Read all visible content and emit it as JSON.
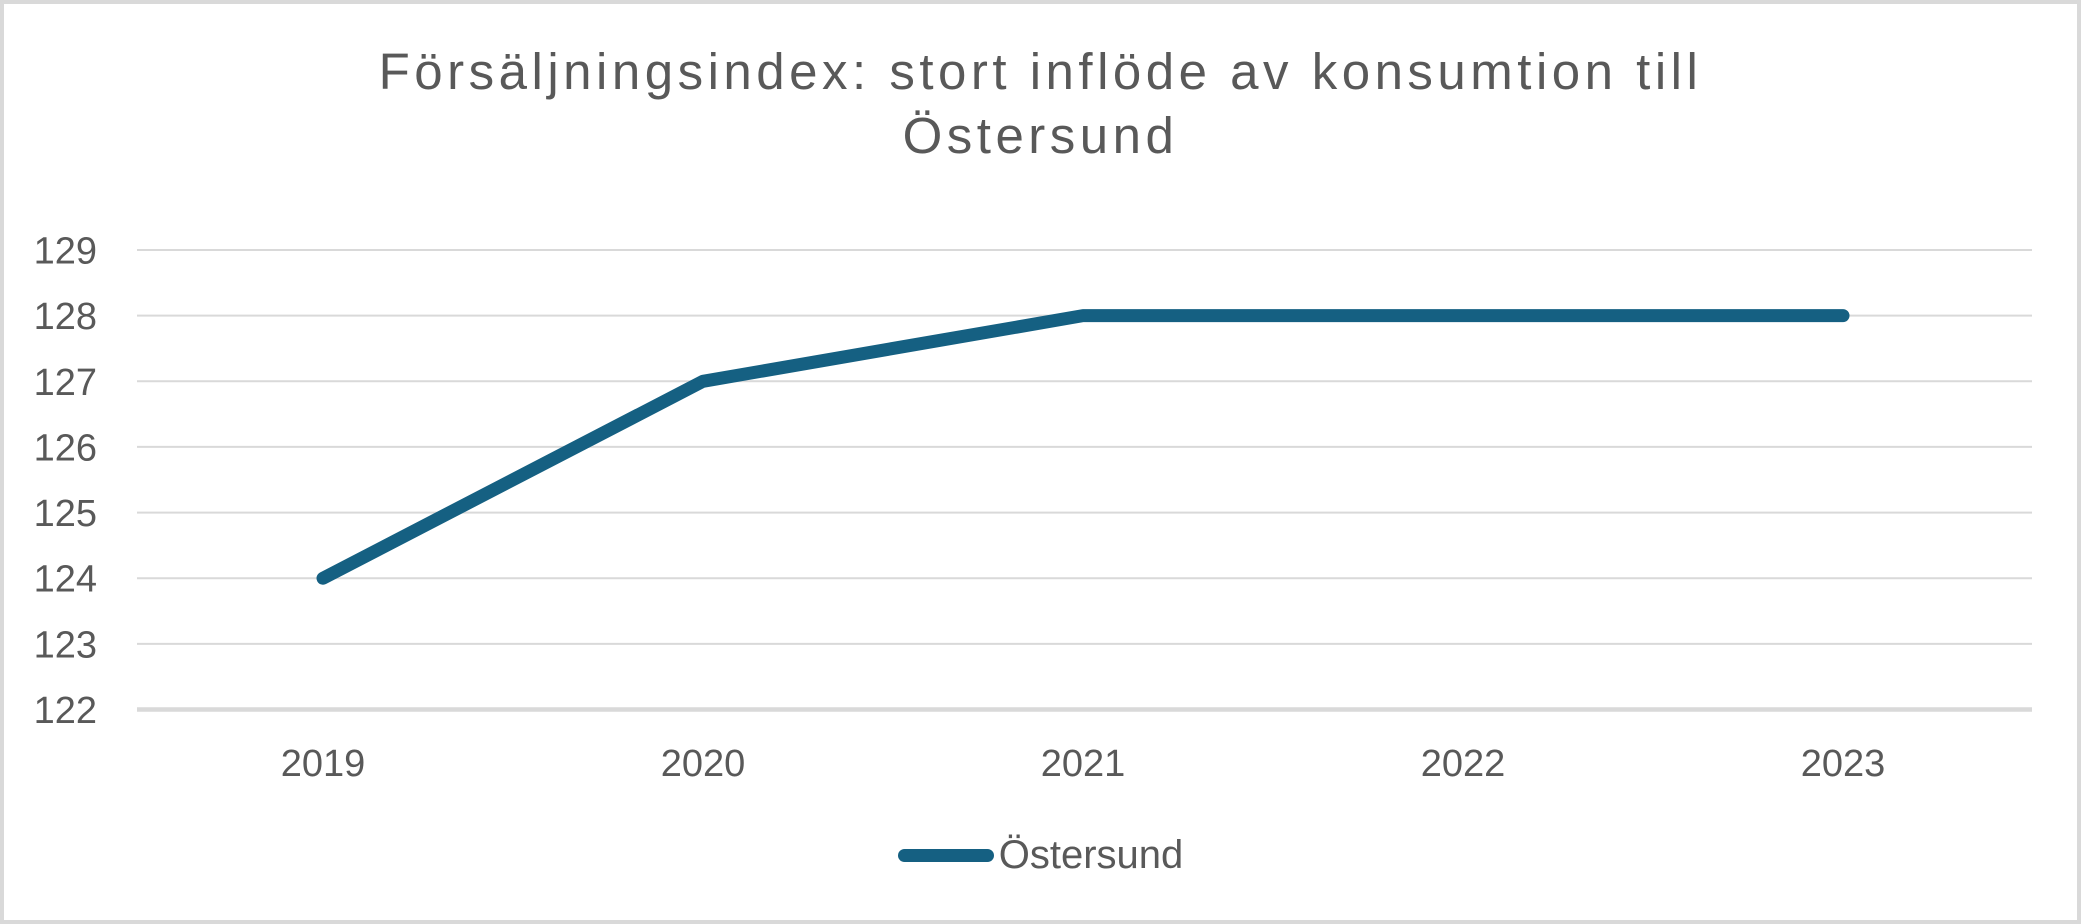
{
  "chart_data": {
    "type": "line",
    "title": "Försäljningsindex: stort inflöde av konsumtion till Östersund",
    "categories": [
      "2019",
      "2020",
      "2021",
      "2022",
      "2023"
    ],
    "series": [
      {
        "name": "Östersund",
        "values": [
          124,
          127,
          128,
          128,
          128
        ],
        "color": "#156082"
      }
    ],
    "xlabel": "",
    "ylabel": "",
    "ylim": [
      122,
      129
    ],
    "yticks": [
      122,
      123,
      124,
      125,
      126,
      127,
      128,
      129
    ],
    "grid": "horizontal-only",
    "legend_position": "bottom-center",
    "colors": {
      "line": "#156082",
      "gridline": "#d9d9d9",
      "axis_line": "#d9d9d9",
      "text": "#595959",
      "background": "#ffffff",
      "frame_border": "#d9d9d9"
    }
  }
}
